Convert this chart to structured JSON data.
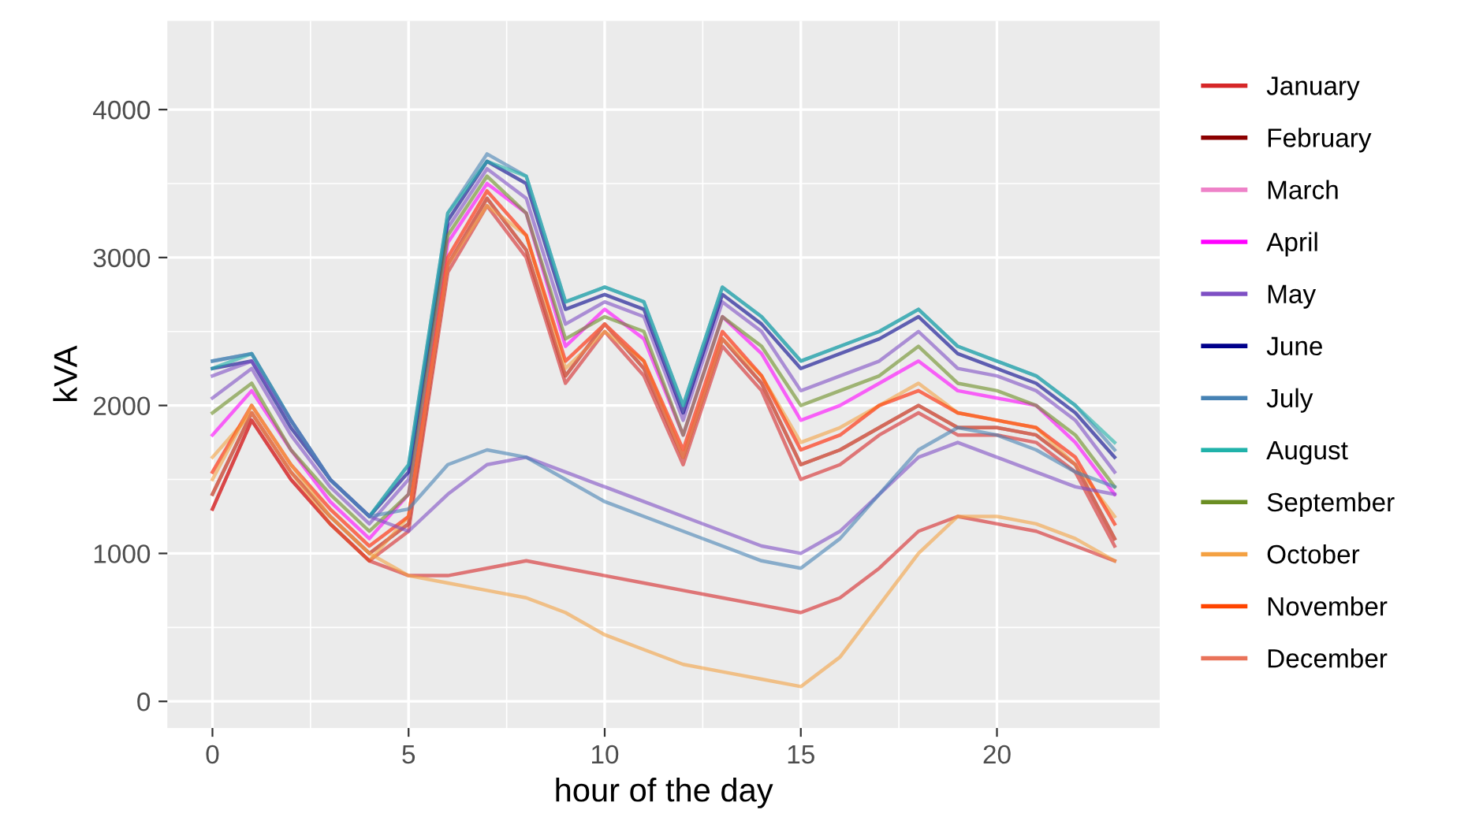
{
  "chart_data": {
    "type": "line",
    "xlabel": "hour of the day",
    "ylabel": "kVA",
    "x": [
      0,
      1,
      2,
      3,
      4,
      5,
      6,
      7,
      8,
      9,
      10,
      11,
      12,
      13,
      14,
      15,
      16,
      17,
      18,
      19,
      20,
      21,
      22,
      23
    ],
    "xlim": [
      -1.15,
      24.15
    ],
    "xticks": [
      0,
      5,
      10,
      15,
      20
    ],
    "ylim": [
      -180,
      4600
    ],
    "yticks": [
      0,
      1000,
      2000,
      3000,
      4000
    ],
    "grid": true,
    "legend": "right",
    "line_style": "solid",
    "marker": "none",
    "series": [
      {
        "name": "January",
        "color": "#d62728",
        "values": [
          1300,
          1900,
          1500,
          1200,
          950,
          1150,
          2900,
          3350,
          3000,
          2150,
          2500,
          2200,
          1600,
          2400,
          2100,
          1500,
          1600,
          1800,
          1950,
          1800,
          1800,
          1750,
          1550,
          1050
        ]
      },
      {
        "name": "February",
        "color": "#8b0000",
        "values": [
          1400,
          1950,
          1550,
          1250,
          1000,
          1200,
          2950,
          3400,
          3050,
          2200,
          2550,
          2250,
          1650,
          2450,
          2150,
          1600,
          1700,
          1850,
          2000,
          1850,
          1850,
          1800,
          1600,
          1100
        ]
      },
      {
        "name": "March",
        "color": "#ee82c8",
        "values": [
          1550,
          2000,
          1600,
          1300,
          1050,
          1250,
          3000,
          3450,
          3150,
          2300,
          2550,
          2300,
          1700,
          2500,
          2200,
          1700,
          1800,
          2000,
          2100,
          1950,
          1900,
          1850,
          1650,
          1200
        ]
      },
      {
        "name": "April",
        "color": "#ff00ff",
        "values": [
          1800,
          2100,
          1700,
          1350,
          1100,
          1400,
          3100,
          3500,
          3300,
          2400,
          2650,
          2450,
          1800,
          2600,
          2350,
          1900,
          2000,
          2150,
          2300,
          2100,
          2050,
          2000,
          1750,
          1400
        ]
      },
      {
        "name": "May",
        "color": "#7e4fc4",
        "values": [
          2050,
          2250,
          1800,
          1450,
          1200,
          1500,
          3200,
          3600,
          3400,
          2550,
          2700,
          2600,
          1900,
          2700,
          2500,
          2100,
          2200,
          2300,
          2500,
          2250,
          2200,
          2100,
          1900,
          1550
        ]
      },
      {
        "name": "June",
        "color": "#00008b",
        "values": [
          2250,
          2300,
          1850,
          1500,
          1250,
          1550,
          3250,
          3650,
          3500,
          2650,
          2750,
          2650,
          1950,
          2750,
          2550,
          2250,
          2350,
          2450,
          2600,
          2350,
          2250,
          2150,
          1950,
          1650
        ]
      },
      {
        "name": "July",
        "color": "#4682b4",
        "values": [
          2300,
          2350,
          1900,
          1500,
          1250,
          1600,
          3300,
          3700,
          3550,
          2700,
          2800,
          2700,
          2000,
          2800,
          2600,
          2300,
          2400,
          2500,
          2650,
          2400,
          2300,
          2200,
          2000,
          1700
        ]
      },
      {
        "name": "August",
        "color": "#20b2aa",
        "values": [
          2250,
          2350,
          1900,
          1500,
          1250,
          1600,
          3300,
          3650,
          3550,
          2700,
          2800,
          2700,
          2000,
          2800,
          2600,
          2300,
          2400,
          2500,
          2650,
          2400,
          2300,
          2200,
          2000,
          1750
        ]
      },
      {
        "name": "September",
        "color": "#6b8e23",
        "values": [
          1950,
          2150,
          1700,
          1400,
          1150,
          1400,
          3150,
          3550,
          3300,
          2450,
          2600,
          2500,
          1800,
          2600,
          2400,
          2000,
          2100,
          2200,
          2400,
          2150,
          2100,
          2000,
          1800,
          1450
        ]
      },
      {
        "name": "October",
        "color": "#f4a142",
        "values": [
          1650,
          1950,
          1550,
          1200,
          950,
          1250,
          2950,
          3350,
          3150,
          2250,
          2500,
          2300,
          1650,
          2450,
          2200,
          1750,
          1850,
          2000,
          2150,
          1950,
          1900,
          1850,
          1600,
          1250
        ]
      },
      {
        "name": "November",
        "color": "#ff4500",
        "values": [
          1550,
          2000,
          1600,
          1300,
          1050,
          1250,
          3000,
          3450,
          3150,
          2300,
          2550,
          2300,
          1700,
          2500,
          2200,
          1700,
          1800,
          2000,
          2100,
          1950,
          1900,
          1850,
          1650,
          1200
        ]
      },
      {
        "name": "December",
        "color": "#e9735a",
        "values": [
          1400,
          1950,
          1550,
          1250,
          1000,
          1200,
          2950,
          3400,
          3050,
          2200,
          2550,
          2250,
          1650,
          2450,
          2150,
          1600,
          1700,
          1850,
          2000,
          1850,
          1850,
          1800,
          1600,
          1100
        ]
      },
      {
        "color": "#d62728",
        "values": [
          1300,
          1900,
          1500,
          1200,
          950,
          850,
          850,
          900,
          950,
          900,
          850,
          800,
          750,
          700,
          650,
          600,
          700,
          900,
          1150,
          1250,
          1200,
          1150,
          1050,
          950
        ]
      },
      {
        "color": "#7e4fc4",
        "values": [
          2200,
          2300,
          1900,
          1500,
          1250,
          1150,
          1400,
          1600,
          1650,
          1550,
          1450,
          1350,
          1250,
          1150,
          1050,
          1000,
          1150,
          1400,
          1650,
          1750,
          1650,
          1550,
          1450,
          1400
        ]
      },
      {
        "color": "#f4a142",
        "values": [
          1500,
          2000,
          1600,
          1250,
          1000,
          850,
          800,
          750,
          700,
          600,
          450,
          350,
          250,
          200,
          150,
          100,
          300,
          650,
          1000,
          1250,
          1250,
          1200,
          1100,
          950
        ]
      },
      {
        "color": "#4682b4",
        "values": [
          2300,
          2350,
          1900,
          1500,
          1250,
          1300,
          1600,
          1700,
          1650,
          1500,
          1350,
          1250,
          1150,
          1050,
          950,
          900,
          1100,
          1400,
          1700,
          1850,
          1800,
          1700,
          1550,
          1450
        ]
      }
    ]
  }
}
